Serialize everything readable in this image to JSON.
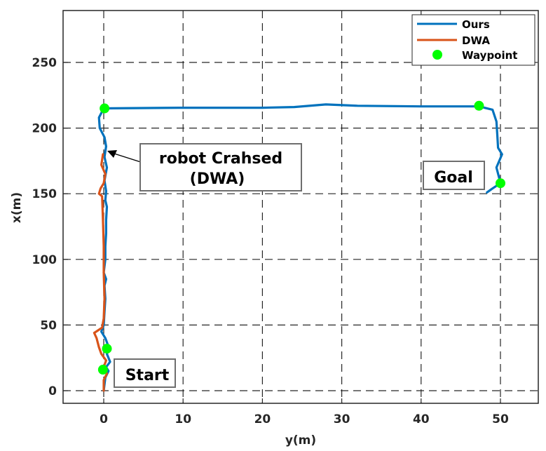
{
  "chart_data": {
    "type": "line",
    "title": "",
    "xlabel": "y(m)",
    "ylabel": "x(m)",
    "xlim": [
      -5,
      55
    ],
    "ylim": [
      -10,
      290
    ],
    "xticks": [
      0,
      10,
      20,
      30,
      40,
      50
    ],
    "yticks": [
      0,
      50,
      100,
      150,
      200,
      250
    ],
    "grid": true,
    "grid_style": "dashed",
    "legend_position": "upper right",
    "legend": [
      "Ours",
      "DWA",
      "Waypoint"
    ],
    "series": [
      {
        "name": "Ours",
        "color": "#0072BD",
        "kind": "line",
        "points": [
          [
            0,
            0
          ],
          [
            0.2,
            10
          ],
          [
            0.6,
            15
          ],
          [
            0.3,
            18
          ],
          [
            0.8,
            22
          ],
          [
            0.4,
            28
          ],
          [
            0.7,
            32
          ],
          [
            0.2,
            40
          ],
          [
            -0.3,
            45
          ],
          [
            0,
            50
          ],
          [
            0.1,
            60
          ],
          [
            0.2,
            70
          ],
          [
            0.1,
            80
          ],
          [
            0.3,
            85
          ],
          [
            0,
            90
          ],
          [
            0.2,
            100
          ],
          [
            0.2,
            110
          ],
          [
            0.3,
            120
          ],
          [
            0.3,
            130
          ],
          [
            0.4,
            140
          ],
          [
            0.2,
            145
          ],
          [
            0.3,
            152
          ],
          [
            0.1,
            160
          ],
          [
            0.4,
            170
          ],
          [
            0.1,
            178
          ],
          [
            0.3,
            186
          ],
          [
            0.1,
            193
          ],
          [
            -0.5,
            200
          ],
          [
            -0.6,
            208
          ],
          [
            0,
            215
          ],
          [
            10,
            215.5
          ],
          [
            20,
            215.5
          ],
          [
            24,
            216
          ],
          [
            28,
            218
          ],
          [
            32,
            217
          ],
          [
            40,
            216.5
          ],
          [
            47.3,
            216.5
          ],
          [
            49,
            214
          ],
          [
            49.5,
            205
          ],
          [
            49.6,
            195
          ],
          [
            49.7,
            185
          ],
          [
            50.2,
            180
          ],
          [
            49.5,
            170
          ],
          [
            49.8,
            163
          ],
          [
            50,
            158
          ],
          [
            49,
            154
          ],
          [
            48.3,
            151
          ]
        ]
      },
      {
        "name": "DWA",
        "color": "#D95319",
        "kind": "line",
        "points": [
          [
            0,
            0
          ],
          [
            0,
            8
          ],
          [
            0.4,
            13
          ],
          [
            0,
            18
          ],
          [
            0.3,
            23
          ],
          [
            -0.3,
            28
          ],
          [
            -0.6,
            33
          ],
          [
            -0.9,
            40
          ],
          [
            -1.2,
            44
          ],
          [
            -0.7,
            46
          ],
          [
            -0.2,
            48
          ],
          [
            0,
            55
          ],
          [
            0.1,
            70
          ],
          [
            0,
            90
          ],
          [
            0,
            110
          ],
          [
            -0.1,
            130
          ],
          [
            -0.2,
            148
          ],
          [
            -0.6,
            150
          ],
          [
            -0.4,
            154
          ],
          [
            0,
            158
          ],
          [
            0.2,
            165
          ],
          [
            -0.3,
            172
          ],
          [
            -0.1,
            180
          ]
        ]
      },
      {
        "name": "Waypoint",
        "color": "#00FF00",
        "kind": "scatter",
        "points": [
          [
            -0.1,
            16
          ],
          [
            0.4,
            32
          ],
          [
            0.1,
            215
          ],
          [
            47.3,
            217
          ],
          [
            50,
            158
          ]
        ]
      }
    ],
    "annotations": [
      {
        "text": "robot Crahsed\n(DWA)",
        "xy": [
          0.3,
          182
        ],
        "text_xy": [
          12.5,
          170
        ],
        "arrow": true
      },
      {
        "text": "Start",
        "xy": [
          5.5,
          12
        ],
        "arrow": false
      },
      {
        "text": "Goal",
        "xy": [
          44.5,
          163
        ],
        "arrow": false
      }
    ]
  },
  "labels": {
    "xlabel": "y(m)",
    "ylabel": "x(m)",
    "xticks": [
      "0",
      "10",
      "20",
      "30",
      "40",
      "50"
    ],
    "yticks": [
      "0",
      "50",
      "100",
      "150",
      "200",
      "250"
    ],
    "legend": [
      "Ours",
      "DWA",
      "Waypoint"
    ],
    "annot_crash_line1": "robot Crahsed",
    "annot_crash_line2": "(DWA)",
    "annot_start": "Start",
    "annot_goal": "Goal"
  }
}
